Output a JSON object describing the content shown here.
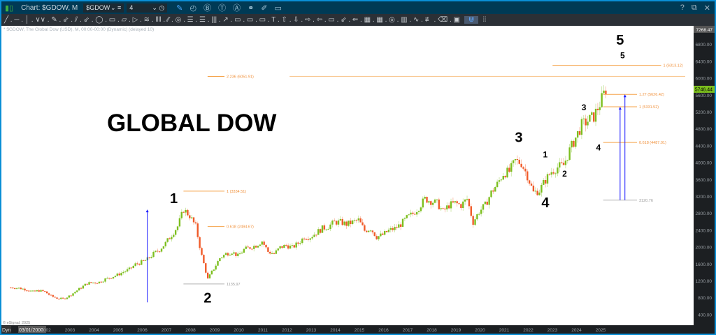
{
  "window": {
    "title": "Chart: $GDOW, M",
    "symbol": "$GDOW",
    "interval": "4",
    "help": "?",
    "close": "✕"
  },
  "toolbar_icons": [
    "pencil-icon",
    "study-icon",
    "buy-icon",
    "text-icon",
    "alert-icon",
    "link-icon",
    "edit-icon",
    "comment-icon"
  ],
  "toolbar_drawing": "╱ . ─ . │ . ∨∨ . ✎ . ⇙ . ⫽ . ⇙ . ◯ . ▭ . ▱ . ▷ . ≋ . ‖‖ . ⁄⁄ . ◎ . ☰ . ☰ . ||| . ↗ . ▭ . ▭ . ▭ . T . ⇧ . ⇩ . ⇨ . ⇦ . ▭ . ⇙ . ⇐ . ▦ . ▦ . ◎ . ▥ . ∿ . ≢ . ⌫ . ▣",
  "toolbar_selected": "⋓",
  "toolbar_last": "⫶⫶",
  "chart_subtitle": "* $GDOW, The Global Dow (USD), M, 00:00-00:00 (Dynamic) (delayed 10)",
  "copyright": "© eSignal, 2025",
  "cursor_date": "03/01/2000",
  "dyn_label": "Dyn",
  "headline": "GLOBAL DOW",
  "colors": {
    "up": "#7cbf1e",
    "down": "#f05a28",
    "fib": "#f5a34a",
    "arrow": "#1a1aff",
    "last_price_bg": "#7cbf1e"
  },
  "chart_data": {
    "type": "candlestick",
    "ylim": [
      400,
      7268.47
    ],
    "y_ticks": [
      "400.00",
      "800.00",
      "1200.00",
      "1600.00",
      "2000.00",
      "2400.00",
      "2800.00",
      "3200.00",
      "3600.00",
      "4000.00",
      "4400.00",
      "4800.00",
      "5200.00",
      "5600.00",
      "6000.00",
      "6400.00",
      "6800.00"
    ],
    "y_top_label": "7268.47",
    "last_price": "5746.44",
    "x_ticks": [
      "2002",
      "2003",
      "2004",
      "2005",
      "2006",
      "2007",
      "2008",
      "2009",
      "2010",
      "2011",
      "2012",
      "2013",
      "2014",
      "2015",
      "2016",
      "2017",
      "2018",
      "2019",
      "2020",
      "2021",
      "2022",
      "2023",
      "2024",
      "2025"
    ],
    "start_year": 2001,
    "quarterly_closes": [
      1050,
      1030,
      1000,
      950,
      980,
      950,
      850,
      800,
      780,
      850,
      950,
      1050,
      1150,
      1170,
      1180,
      1250,
      1300,
      1350,
      1420,
      1480,
      1600,
      1650,
      1720,
      1850,
      1950,
      2100,
      2300,
      2500,
      2900,
      2750,
      2500,
      1800,
      1250,
      1500,
      1750,
      1850,
      1900,
      1800,
      1950,
      2000,
      2050,
      2150,
      1900,
      1850,
      2000,
      2050,
      2000,
      2100,
      2250,
      2250,
      2350,
      2450,
      2500,
      2600,
      2600,
      2550,
      2600,
      2650,
      2400,
      2450,
      2250,
      2300,
      2400,
      2450,
      2550,
      2700,
      2800,
      2950,
      3150,
      3100,
      3050,
      2850,
      3000,
      3050,
      3000,
      3150,
      2600,
      2850,
      3000,
      3300,
      3500,
      3750,
      3800,
      4050,
      4000,
      3700,
      3300,
      3350,
      3600,
      3800,
      3900,
      3950,
      4300,
      4600,
      4900,
      5000,
      5100,
      5400,
      5750
    ],
    "fib_levels": [
      {
        "label": "2.236 (6051.91)",
        "price": 6051.91,
        "from": 2009.2,
        "to": 2009.9,
        "ext_from": 2012.6,
        "ext_to": 2029
      },
      {
        "label": "1 (6313.12)",
        "price": 6313.12,
        "from": 2023.5,
        "to": 2028.0
      },
      {
        "label": "1.27 (5626.42)",
        "price": 5626.42,
        "from": 2025.6,
        "to": 2027.0
      },
      {
        "label": "1 (5331.52)",
        "price": 5331.52,
        "from": 2025.6,
        "to": 2027.0
      },
      {
        "label": "0.618 (4487.01)",
        "price": 4487.01,
        "from": 2025.6,
        "to": 2027.0
      },
      {
        "label": "3120.76",
        "price": 3120.76,
        "from": 2025.6,
        "to": 2027.0,
        "gray": true
      },
      {
        "label": "1 (3334.51)",
        "price": 3334.51,
        "from": 2008.2,
        "to": 2009.9
      },
      {
        "label": "0.618 (2494.67)",
        "price": 2494.67,
        "from": 2009.2,
        "to": 2009.9
      },
      {
        "label": "1135.97",
        "price": 1135.97,
        "from": 2008.2,
        "to": 2009.9,
        "gray": true
      }
    ],
    "arrows": [
      {
        "x": 2006.7,
        "from": 700,
        "to": 2900
      },
      {
        "x": 2026.3,
        "from": 3120.76,
        "to": 5331.52
      },
      {
        "x": 2026.5,
        "from": 3120.76,
        "to": 5626.42
      }
    ],
    "wave_labels": [
      {
        "text": "1",
        "x": 2007.8,
        "price": 3050,
        "size": "big"
      },
      {
        "text": "2",
        "x": 2009.2,
        "price": 700,
        "size": "big"
      },
      {
        "text": "3",
        "x": 2022.1,
        "price": 4500,
        "size": "big"
      },
      {
        "text": "4",
        "x": 2023.2,
        "price": 2950,
        "size": "big"
      },
      {
        "text": "1",
        "x": 2023.2,
        "price": 4130,
        "size": "small"
      },
      {
        "text": "2",
        "x": 2024.0,
        "price": 3680,
        "size": "small"
      },
      {
        "text": "3",
        "x": 2024.8,
        "price": 5250,
        "size": "small"
      },
      {
        "text": "4",
        "x": 2025.4,
        "price": 4300,
        "size": "small"
      },
      {
        "text": "5",
        "x": 2026.3,
        "price": 6800,
        "size": "big"
      },
      {
        "text": "5",
        "x": 2026.4,
        "price": 6480,
        "size": "small"
      }
    ]
  }
}
